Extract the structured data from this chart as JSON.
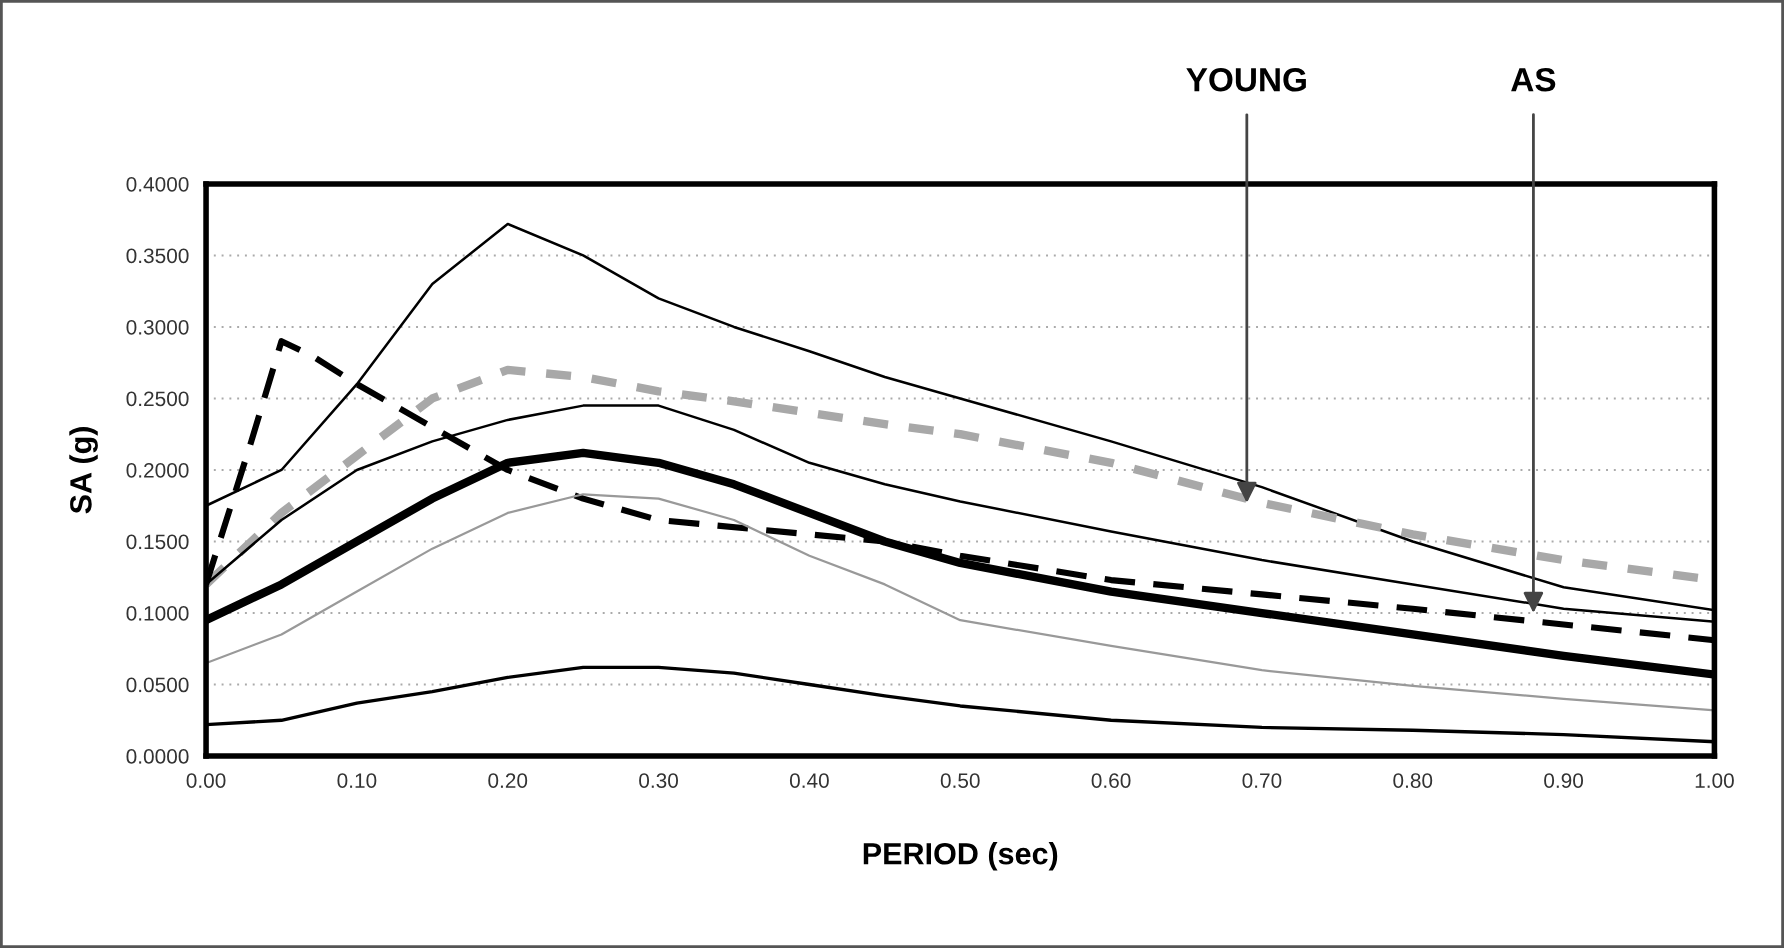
{
  "chart_data": {
    "type": "line",
    "xlabel": "PERIOD (sec)",
    "ylabel": "SA (g)",
    "xlim": [
      0,
      1
    ],
    "ylim": [
      0,
      0.4
    ],
    "xticks": [
      {
        "value": 0,
        "label": "0.00"
      },
      {
        "value": 0.1,
        "label": "0.10"
      },
      {
        "value": 0.2,
        "label": "0.20"
      },
      {
        "value": 0.3,
        "label": "0.30"
      },
      {
        "value": 0.4,
        "label": "0.40"
      },
      {
        "value": 0.5,
        "label": "0.50"
      },
      {
        "value": 0.6,
        "label": "0.60"
      },
      {
        "value": 0.7,
        "label": "0.70"
      },
      {
        "value": 0.8,
        "label": "0.80"
      },
      {
        "value": 0.9,
        "label": "0.90"
      },
      {
        "value": 1,
        "label": "1.00"
      }
    ],
    "yticks": [
      {
        "value": 0,
        "label": "0.0000"
      },
      {
        "value": 0.05,
        "label": "0.0500"
      },
      {
        "value": 0.1,
        "label": "0.1000"
      },
      {
        "value": 0.15,
        "label": "0.1500"
      },
      {
        "value": 0.2,
        "label": "0.2000"
      },
      {
        "value": 0.25,
        "label": "0.2500"
      },
      {
        "value": 0.3,
        "label": "0.3000"
      },
      {
        "value": 0.35,
        "label": "0.3500"
      },
      {
        "value": 0.4,
        "label": "0.4000"
      }
    ],
    "grid": "y",
    "legend": false,
    "marker": "none",
    "x": [
      0,
      0.05,
      0.1,
      0.15,
      0.2,
      0.25,
      0.3,
      0.35,
      0.4,
      0.45,
      0.5,
      0.6,
      0.7,
      0.8,
      0.9,
      1.0
    ],
    "series": [
      {
        "color": "#000000",
        "line_style": "solid",
        "values": [
          0.175,
          0.2,
          0.26,
          0.33,
          0.372,
          0.35,
          0.32,
          0.3,
          0.283,
          0.265,
          0.25,
          0.22,
          0.188,
          0.15,
          0.118,
          0.102
        ]
      },
      {
        "color": "#a8a8a8",
        "line_style": "dashed",
        "values": [
          0.12,
          0.17,
          0.21,
          0.25,
          0.27,
          0.265,
          0.255,
          0.248,
          0.24,
          0.232,
          0.225,
          0.205,
          0.177,
          0.155,
          0.137,
          0.123
        ]
      },
      {
        "color": "#000000",
        "line_style": "solid",
        "values": [
          0.12,
          0.165,
          0.2,
          0.22,
          0.235,
          0.245,
          0.245,
          0.228,
          0.205,
          0.19,
          0.178,
          0.157,
          0.137,
          0.12,
          0.103,
          0.094
        ]
      },
      {
        "color": "#000000",
        "line_style": "solid",
        "values": [
          0.095,
          0.12,
          0.15,
          0.18,
          0.205,
          0.212,
          0.205,
          0.19,
          0.17,
          0.15,
          0.135,
          0.115,
          0.1,
          0.085,
          0.07,
          0.057
        ]
      },
      {
        "color": "#000000",
        "line_style": "dashed",
        "x": [
          0,
          0.03,
          0.05,
          0.07,
          0.1,
          0.15,
          0.2,
          0.25,
          0.3,
          0.4,
          0.45,
          0.5,
          0.6,
          0.7,
          0.8,
          0.9,
          1.0
        ],
        "values": [
          0.12,
          0.22,
          0.29,
          0.28,
          0.26,
          0.23,
          0.2,
          0.18,
          0.165,
          0.155,
          0.15,
          0.14,
          0.123,
          0.113,
          0.103,
          0.092,
          0.081
        ]
      },
      {
        "color": "#999999",
        "line_style": "solid",
        "values": [
          0.065,
          0.085,
          0.115,
          0.145,
          0.17,
          0.183,
          0.18,
          0.165,
          0.14,
          0.12,
          0.095,
          0.077,
          0.06,
          0.049,
          0.04,
          0.032
        ]
      },
      {
        "color": "#000000",
        "line_style": "solid",
        "values": [
          0.022,
          0.025,
          0.037,
          0.045,
          0.055,
          0.062,
          0.062,
          0.058,
          0.05,
          0.042,
          0.035,
          0.025,
          0.02,
          0.018,
          0.015,
          0.01
        ]
      }
    ],
    "annotations": [
      {
        "text": "YOUNG",
        "x": 0.69,
        "y": 0.177
      },
      {
        "text": "AS",
        "x": 0.88,
        "y": 0.1
      }
    ]
  }
}
